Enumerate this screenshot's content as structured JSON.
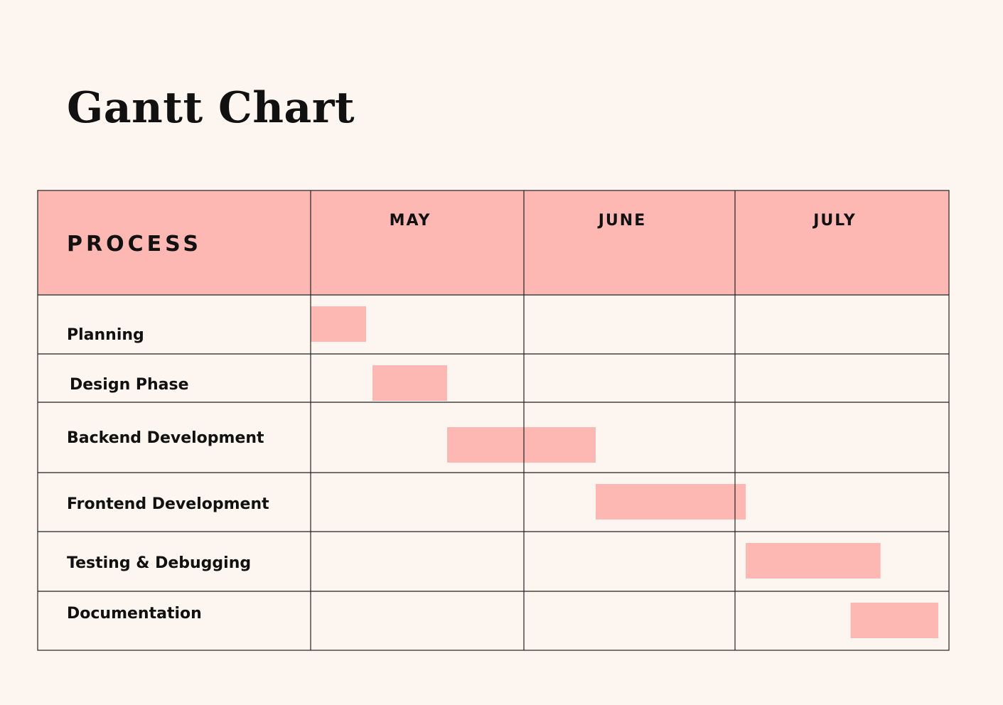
{
  "title": "Gantt Chart",
  "colors": {
    "background": "#fdf5ef",
    "header_fill": "#fdb8b4",
    "bar_fill": "#fdb8b4",
    "grid_line": "#222222",
    "text": "#111111"
  },
  "chart_data": {
    "type": "gantt",
    "title": "Gantt Chart",
    "row_header": "PROCESS",
    "months": [
      "MAY",
      "JUNE",
      "JULY"
    ],
    "time_unit": "month fraction (0 = start of MAY, 3 = end of JULY)",
    "xlim": [
      0,
      3
    ],
    "grid": true,
    "tasks": [
      {
        "name": "Planning",
        "start": 0.0,
        "end": 0.26
      },
      {
        "name": "Design Phase",
        "start": 0.29,
        "end": 0.64
      },
      {
        "name": "Backend Development",
        "start": 0.64,
        "end": 1.34
      },
      {
        "name": "Frontend Development",
        "start": 1.34,
        "end": 2.05
      },
      {
        "name": "Testing & Debugging",
        "start": 2.05,
        "end": 2.68
      },
      {
        "name": "Documentation",
        "start": 2.54,
        "end": 2.95
      }
    ]
  }
}
